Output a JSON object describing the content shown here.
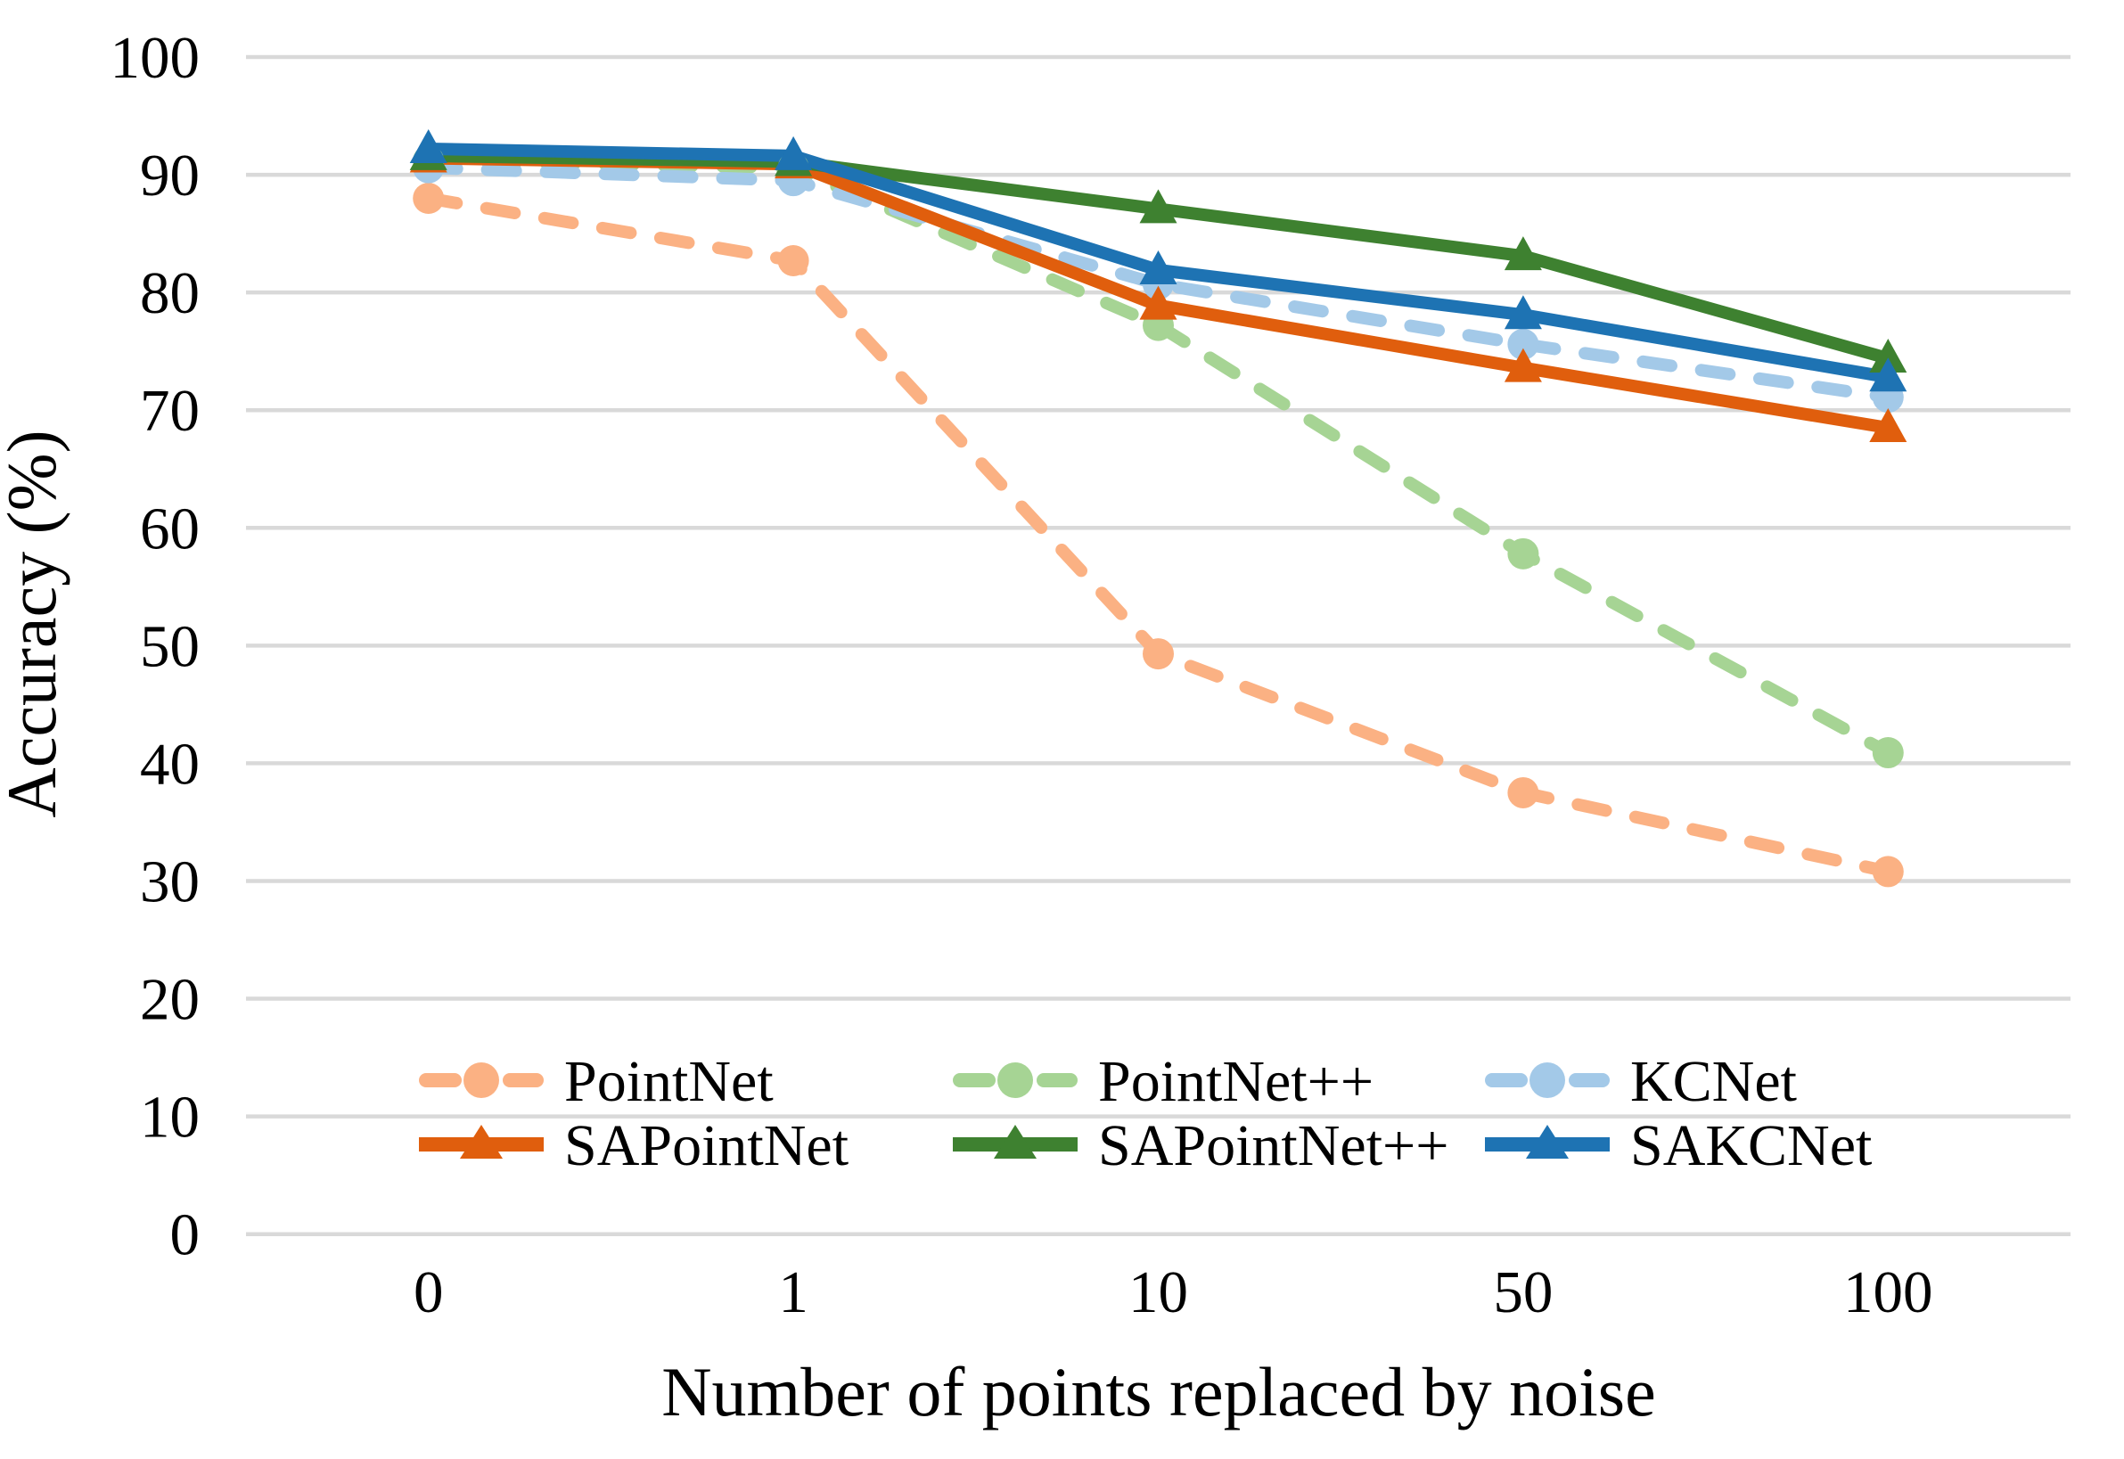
{
  "chart_data": {
    "type": "line",
    "title": "",
    "xlabel": "Number of points replaced by noise",
    "ylabel": "Accuracy (%)",
    "categories": [
      "0",
      "1",
      "10",
      "50",
      "100"
    ],
    "ylim": [
      0,
      100
    ],
    "ytick_step": 10,
    "yticks": [
      0,
      10,
      20,
      30,
      40,
      50,
      60,
      70,
      80,
      90,
      100
    ],
    "grid": "horizontal",
    "gridline_color": "#D9D9D9",
    "background_color": "#FFFFFF",
    "legend_position": "inside-bottom-two-rows",
    "series": [
      {
        "name": "PointNet",
        "values": [
          88.0,
          82.7,
          49.3,
          37.5,
          30.8
        ],
        "color": "#FBB183",
        "line_style": "dashed",
        "marker": "circle"
      },
      {
        "name": "PointNet++",
        "values": [
          91.2,
          90.6,
          77.2,
          57.8,
          40.9
        ],
        "color": "#A6D494",
        "line_style": "dashed",
        "marker": "circle"
      },
      {
        "name": "KCNet",
        "values": [
          90.6,
          89.5,
          80.7,
          75.6,
          71.1
        ],
        "color": "#A3C9E8",
        "line_style": "dashed",
        "marker": "circle"
      },
      {
        "name": "SAPointNet",
        "values": [
          91.4,
          90.9,
          78.9,
          73.6,
          68.5
        ],
        "color": "#E05E0D",
        "line_style": "solid",
        "marker": "triangle"
      },
      {
        "name": "SAPointNet++",
        "values": [
          91.6,
          91.1,
          87.1,
          83.1,
          74.4
        ],
        "color": "#3E8130",
        "line_style": "solid",
        "marker": "triangle"
      },
      {
        "name": "SAKCNet",
        "values": [
          92.2,
          91.6,
          81.9,
          78.1,
          72.8
        ],
        "color": "#1E73B3",
        "line_style": "solid",
        "marker": "triangle"
      }
    ],
    "legend": {
      "rows": [
        [
          "PointNet",
          "PointNet++",
          "KCNet"
        ],
        [
          "SAPointNet",
          "SAPointNet++",
          "SAKCNet"
        ]
      ]
    }
  }
}
